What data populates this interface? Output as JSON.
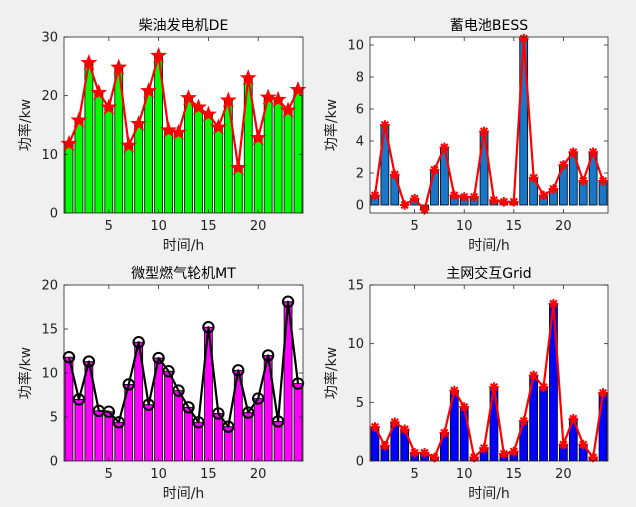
{
  "chart_data": [
    {
      "type": "bar",
      "title": "柴油发电机DE",
      "xlabel": "时间/h",
      "ylabel": "功率/kw",
      "xlim": [
        0.5,
        24.5
      ],
      "ylim": [
        0,
        30
      ],
      "xticks": [
        5,
        10,
        15,
        20
      ],
      "yticks": [
        0,
        10,
        20,
        30
      ],
      "x": [
        1,
        2,
        3,
        4,
        5,
        6,
        7,
        8,
        9,
        10,
        11,
        12,
        13,
        14,
        15,
        16,
        17,
        18,
        19,
        20,
        21,
        22,
        23,
        24
      ],
      "values": [
        11.8,
        15.8,
        25.6,
        20.5,
        18.0,
        24.8,
        11.5,
        15.2,
        20.8,
        26.8,
        14.1,
        13.7,
        19.6,
        18.0,
        16.8,
        14.6,
        19.2,
        7.7,
        23.0,
        12.8,
        19.7,
        19.3,
        17.5,
        21.0
      ],
      "bar_color": "#00ff00",
      "line_color": "#ff0000",
      "marker": "star",
      "grid": false
    },
    {
      "type": "bar",
      "title": "蓄电池BESS",
      "xlabel": "时间/h",
      "ylabel": "功率/kw",
      "xlim": [
        0.5,
        24.5
      ],
      "ylim": [
        -0.5,
        10.5
      ],
      "xticks": [
        5,
        10,
        15,
        20
      ],
      "yticks": [
        0,
        2,
        4,
        6,
        8,
        10
      ],
      "x": [
        1,
        2,
        3,
        4,
        5,
        6,
        7,
        8,
        9,
        10,
        11,
        12,
        13,
        14,
        15,
        16,
        17,
        18,
        19,
        20,
        21,
        22,
        23,
        24
      ],
      "values": [
        0.6,
        5.0,
        1.9,
        0.0,
        0.4,
        -0.3,
        2.2,
        3.6,
        0.6,
        0.5,
        0.5,
        4.6,
        0.3,
        0.2,
        0.2,
        10.4,
        1.7,
        0.6,
        1.0,
        2.5,
        3.3,
        1.5,
        3.3,
        1.5
      ],
      "bar_color": "#1a76c7",
      "line_color": "#ff0000",
      "marker": "asterisk",
      "grid": false
    },
    {
      "type": "bar",
      "title": "微型燃气轮机MT",
      "xlabel": "时间/h",
      "ylabel": "功率/kw",
      "xlim": [
        0.5,
        24.5
      ],
      "ylim": [
        0,
        20
      ],
      "xticks": [
        5,
        10,
        15,
        20
      ],
      "yticks": [
        0,
        5,
        10,
        15,
        20
      ],
      "x": [
        1,
        2,
        3,
        4,
        5,
        6,
        7,
        8,
        9,
        10,
        11,
        12,
        13,
        14,
        15,
        16,
        17,
        18,
        19,
        20,
        21,
        22,
        23,
        24
      ],
      "values": [
        11.8,
        7.0,
        11.3,
        5.7,
        5.6,
        4.4,
        8.7,
        13.5,
        6.4,
        11.7,
        10.2,
        8.0,
        6.1,
        4.4,
        15.2,
        5.4,
        3.9,
        10.3,
        5.5,
        7.1,
        12.0,
        4.5,
        18.1,
        8.8
      ],
      "bar_color": "#ff00ff",
      "line_color": "#000000",
      "marker": "circle",
      "grid": false
    },
    {
      "type": "bar",
      "title": "主网交互Grid",
      "xlabel": "时间/h",
      "ylabel": "功率/kw",
      "xlim": [
        0.5,
        24.5
      ],
      "ylim": [
        0,
        15
      ],
      "xticks": [
        5,
        10,
        15,
        20
      ],
      "yticks": [
        0,
        5,
        10,
        15
      ],
      "x": [
        1,
        2,
        3,
        4,
        5,
        6,
        7,
        8,
        9,
        10,
        11,
        12,
        13,
        14,
        15,
        16,
        17,
        18,
        19,
        20,
        21,
        22,
        23,
        24
      ],
      "values": [
        2.9,
        1.3,
        3.3,
        2.7,
        0.7,
        0.7,
        0.3,
        2.4,
        6.0,
        4.6,
        0.3,
        1.1,
        6.3,
        0.6,
        0.8,
        3.4,
        7.3,
        6.3,
        13.4,
        1.4,
        3.6,
        1.4,
        0.3,
        5.8
      ],
      "bar_color": "#0000ff",
      "line_color": "#ff0000",
      "marker": "asterisk",
      "grid": false
    }
  ]
}
